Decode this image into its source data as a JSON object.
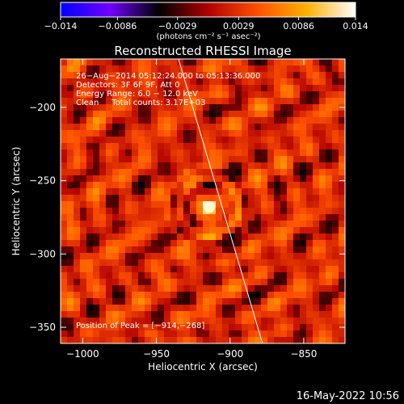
{
  "window": {
    "timestamp": "16-May-2022 10:56"
  },
  "colorbar": {
    "ticks": [
      -0.014,
      -0.0086,
      -0.0029,
      0.0029,
      0.0086,
      0.014
    ],
    "tick_labels": [
      "−0.014",
      "−0.0086",
      "−0.0029",
      "0.0029",
      "0.0086",
      "0.014"
    ],
    "unit_label": "(photons cm⁻² s⁻¹ asec⁻²)",
    "range": [
      -0.014,
      0.014
    ],
    "colors": [
      "#0000ff",
      "#7000ff",
      "#000000",
      "#b00000",
      "#ff5000",
      "#ffb000",
      "#ffffff"
    ]
  },
  "chart_data": {
    "type": "heatmap",
    "title": "Reconstructed RHESSI Image",
    "xlabel": "Heliocentric X (arcsec)",
    "ylabel": "Heliocentric Y (arcsec)",
    "xlim": [
      -1015,
      -822
    ],
    "ylim": [
      -361,
      -167
    ],
    "xticks": [
      -1000,
      -950,
      -900,
      -850
    ],
    "yticks": [
      -200,
      -250,
      -300,
      -350
    ],
    "xtick_labels": [
      "−1000",
      "−950",
      "−900",
      "−850"
    ],
    "ytick_labels": [
      "−200",
      "−250",
      "−300",
      "−350"
    ],
    "info_lines": [
      "26−Aug−2014 05:12:24.000 to 05:13:36.000",
      "Detectors: 3F 6F 9F, Att 0",
      "Energy Range: 6.0 − 12.0 keV",
      "Clean     Total counts: 3.17E+03"
    ],
    "peak_label": "Position of Peak = [−914,−268]",
    "peak": {
      "x": -914,
      "y": -268
    },
    "limb_line": [
      [
        -935,
        -167
      ],
      [
        -878,
        -361
      ]
    ],
    "grid": false
  }
}
